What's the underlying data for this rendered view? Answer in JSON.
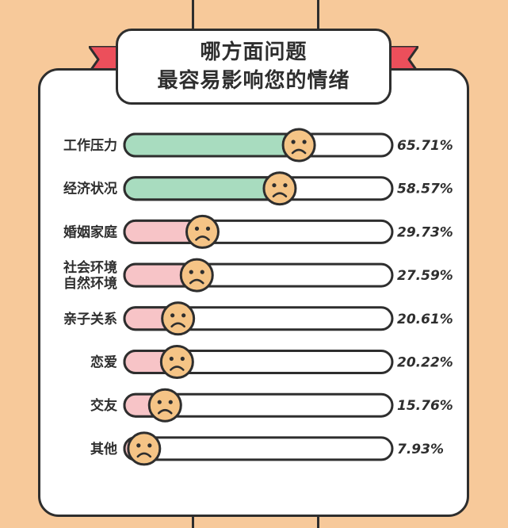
{
  "title": {
    "line1": "哪方面问题",
    "line2": "最容易影响您的情绪"
  },
  "colors": {
    "background": "#f7c99a",
    "stripe": "#2e2e2e",
    "ribbon": "#ec4f5b",
    "fill_high": "#a8dcbf",
    "fill_low": "#f7c4c7",
    "face": "#f5c486"
  },
  "chart_data": {
    "type": "bar",
    "orientation": "horizontal",
    "title": "哪方面问题 最容易影响您的情绪",
    "xlabel": "",
    "ylabel": "",
    "xlim": [
      0,
      100
    ],
    "grid": false,
    "legend": "none",
    "unit": "%",
    "categories": [
      [
        "工作压力"
      ],
      [
        "经济状况"
      ],
      [
        "婚姻家庭"
      ],
      [
        "社会环境",
        "自然环境"
      ],
      [
        "亲子关系"
      ],
      [
        "恋爱"
      ],
      [
        "交友"
      ],
      [
        "其他"
      ]
    ],
    "values": [
      65.71,
      58.57,
      29.73,
      27.59,
      20.61,
      20.22,
      15.76,
      7.93
    ],
    "value_labels": [
      "65.71%",
      "58.57%",
      "29.73%",
      "27.59%",
      "20.61%",
      "20.22%",
      "15.76%",
      "7.93%"
    ],
    "fill_colors": [
      "#a8dcbf",
      "#a8dcbf",
      "#f7c4c7",
      "#f7c4c7",
      "#f7c4c7",
      "#f7c4c7",
      "#f7c4c7",
      "#f7c4c7"
    ],
    "marker_icon": "sad-face-icon"
  }
}
